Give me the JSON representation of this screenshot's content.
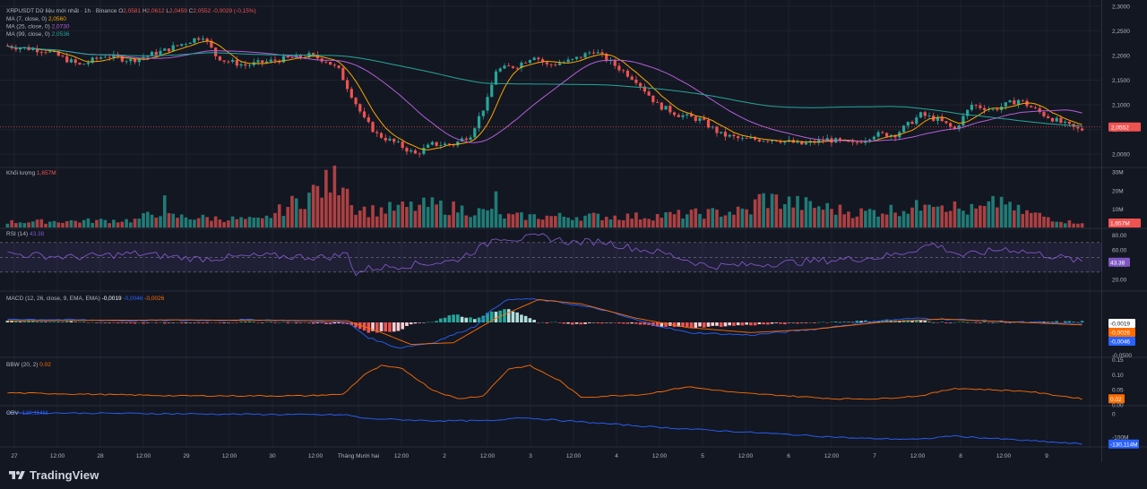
{
  "chart_data": {
    "type": "candlestick",
    "symbol_line": "XRPUSDT Dữ liệu mới nhất · 1h · Binance",
    "ohlc_text": {
      "o_label": "O",
      "o": "2,0581",
      "h_label": "H",
      "h": "2,0612",
      "l_label": "L",
      "l": "2,0459",
      "c_label": "C",
      "c": "2,0552",
      "change": "-0,0029 (-0,15%)"
    },
    "ma_legend": [
      {
        "label": "MA (7, close, 0)",
        "value": "2,0560",
        "color": "#f7a600"
      },
      {
        "label": "MA (25, close, 0)",
        "value": "2,0730",
        "color": "#b45fd7"
      },
      {
        "label": "MA (99, close, 0)",
        "value": "2,0536",
        "color": "#26a69a"
      }
    ],
    "price_axis": {
      "ticks": [
        "2,3000",
        "2,2500",
        "2,2000",
        "2,1500",
        "2,1000",
        "2,0500",
        "2,0000"
      ],
      "range": [
        1.975,
        2.305
      ]
    },
    "last_price": "2,0552",
    "x_axis_ticks": [
      "27",
      "12:00",
      "28",
      "12:00",
      "29",
      "12:00",
      "30",
      "12:00",
      "Tháng Mười hai",
      "12:00",
      "2",
      "12:00",
      "3",
      "12:00",
      "4",
      "12:00",
      "5",
      "12:00",
      "6",
      "12:00",
      "7",
      "12:00",
      "8",
      "12:00",
      "9",
      "12:00"
    ],
    "price_path": [
      [
        0,
        2.22
      ],
      [
        10,
        2.21
      ],
      [
        18,
        2.18
      ],
      [
        24,
        2.2
      ],
      [
        30,
        2.19
      ],
      [
        38,
        2.21
      ],
      [
        44,
        2.23
      ],
      [
        47,
        2.24
      ],
      [
        50,
        2.2
      ],
      [
        52,
        2.19
      ],
      [
        57,
        2.18
      ],
      [
        64,
        2.19
      ],
      [
        72,
        2.2
      ],
      [
        76,
        2.19
      ],
      [
        79,
        2.17
      ],
      [
        85,
        2.07
      ],
      [
        88,
        2.04
      ],
      [
        93,
        2.02
      ],
      [
        97,
        2.0
      ],
      [
        101,
        2.02
      ],
      [
        106,
        2.02
      ],
      [
        110,
        2.04
      ],
      [
        114,
        2.11
      ],
      [
        116,
        2.17
      ],
      [
        121,
        2.18
      ],
      [
        125,
        2.2
      ],
      [
        128,
        2.18
      ],
      [
        134,
        2.19
      ],
      [
        139,
        2.21
      ],
      [
        144,
        2.18
      ],
      [
        149,
        2.15
      ],
      [
        154,
        2.1
      ],
      [
        159,
        2.08
      ],
      [
        164,
        2.07
      ],
      [
        169,
        2.04
      ],
      [
        174,
        2.03
      ],
      [
        182,
        2.03
      ],
      [
        188,
        2.02
      ],
      [
        194,
        2.03
      ],
      [
        200,
        2.02
      ],
      [
        205,
        2.04
      ],
      [
        210,
        2.04
      ],
      [
        216,
        2.08
      ],
      [
        220,
        2.07
      ],
      [
        224,
        2.05
      ],
      [
        228,
        2.1
      ],
      [
        233,
        2.09
      ],
      [
        239,
        2.11
      ],
      [
        245,
        2.08
      ],
      [
        250,
        2.06
      ],
      [
        253,
        2.05
      ]
    ],
    "volume_scale": {
      "ticks": [
        "30M",
        "20M",
        "10M"
      ],
      "last": "1,657M"
    },
    "volume_profile": [
      [
        0,
        3
      ],
      [
        30,
        4
      ],
      [
        36,
        9
      ],
      [
        37,
        13
      ],
      [
        38,
        6
      ],
      [
        60,
        4
      ],
      [
        80,
        29
      ],
      [
        81,
        12
      ],
      [
        85,
        9
      ],
      [
        100,
        12
      ],
      [
        113,
        8
      ],
      [
        115,
        15
      ],
      [
        116,
        6
      ],
      [
        150,
        6
      ],
      [
        175,
        9
      ],
      [
        177,
        16
      ],
      [
        200,
        8
      ],
      [
        215,
        11
      ],
      [
        216,
        18
      ],
      [
        225,
        9
      ],
      [
        230,
        10
      ],
      [
        235,
        16
      ],
      [
        236,
        10
      ],
      [
        250,
        3
      ]
    ],
    "indicators": {
      "volume": {
        "label": "Khối lượng",
        "value": "1,657M"
      },
      "rsi": {
        "label": "RSI (14)",
        "value": "43.38",
        "ticks": [
          "80.00",
          "60.00",
          "40.00",
          "20.00"
        ],
        "last": "43.38",
        "upper": 70,
        "lower": 30,
        "mid": 50
      },
      "macd": {
        "label": "MACD (12, 26, close, 9, EMA, EMA)",
        "v1": "-0,0019",
        "v2": "-0,0046",
        "v3": "-0,0026",
        "axis_labels": {
          "top": "-0,0019",
          "mid": "-0,0026",
          "bottom": "-0,0046",
          "edge": "-0,0500"
        }
      },
      "bbw": {
        "label": "BBW (20, 2)",
        "value": "0.02",
        "ticks": [
          "0.15",
          "0.10",
          "0.05",
          "0.00"
        ],
        "last": "0.02"
      },
      "obv": {
        "label": "OBV",
        "value": "-130,114M",
        "ticks": [
          "0",
          "-100M"
        ],
        "last": "-130,114M"
      }
    },
    "rsi_path": [
      [
        0,
        55
      ],
      [
        15,
        50
      ],
      [
        30,
        55
      ],
      [
        45,
        48
      ],
      [
        60,
        52
      ],
      [
        75,
        50
      ],
      [
        80,
        55
      ],
      [
        82,
        28
      ],
      [
        85,
        35
      ],
      [
        95,
        40
      ],
      [
        105,
        45
      ],
      [
        113,
        68
      ],
      [
        115,
        78
      ],
      [
        120,
        75
      ],
      [
        126,
        78
      ],
      [
        133,
        70
      ],
      [
        140,
        72
      ],
      [
        145,
        65
      ],
      [
        155,
        55
      ],
      [
        165,
        38
      ],
      [
        175,
        40
      ],
      [
        190,
        45
      ],
      [
        205,
        50
      ],
      [
        210,
        55
      ],
      [
        218,
        68
      ],
      [
        225,
        52
      ],
      [
        235,
        62
      ],
      [
        250,
        48
      ],
      [
        253,
        43
      ]
    ],
    "macd_path": [
      [
        0,
        0.004
      ],
      [
        30,
        0.002
      ],
      [
        60,
        0.003
      ],
      [
        80,
        0.0
      ],
      [
        85,
        -0.018
      ],
      [
        92,
        -0.03
      ],
      [
        100,
        -0.024
      ],
      [
        110,
        -0.005
      ],
      [
        113,
        0.01
      ],
      [
        117,
        0.026
      ],
      [
        122,
        0.028
      ],
      [
        130,
        0.024
      ],
      [
        140,
        0.015
      ],
      [
        150,
        0.0
      ],
      [
        160,
        -0.012
      ],
      [
        175,
        -0.015
      ],
      [
        190,
        -0.008
      ],
      [
        205,
        0.002
      ],
      [
        215,
        0.005
      ],
      [
        225,
        0.003
      ],
      [
        240,
        0.0
      ],
      [
        253,
        -0.002
      ]
    ],
    "signal_path": [
      [
        0,
        0.002
      ],
      [
        40,
        0.003
      ],
      [
        80,
        0.002
      ],
      [
        88,
        -0.012
      ],
      [
        95,
        -0.026
      ],
      [
        105,
        -0.024
      ],
      [
        115,
        0.005
      ],
      [
        125,
        0.027
      ],
      [
        135,
        0.022
      ],
      [
        148,
        0.005
      ],
      [
        160,
        -0.006
      ],
      [
        175,
        -0.012
      ],
      [
        190,
        -0.008
      ],
      [
        205,
        0.0
      ],
      [
        220,
        0.004
      ],
      [
        253,
        -0.003
      ]
    ],
    "bbw_path": [
      [
        0,
        0.04
      ],
      [
        40,
        0.03
      ],
      [
        70,
        0.03
      ],
      [
        79,
        0.035
      ],
      [
        84,
        0.1
      ],
      [
        88,
        0.13
      ],
      [
        93,
        0.12
      ],
      [
        100,
        0.05
      ],
      [
        106,
        0.02
      ],
      [
        112,
        0.03
      ],
      [
        118,
        0.12
      ],
      [
        123,
        0.13
      ],
      [
        130,
        0.08
      ],
      [
        135,
        0.025
      ],
      [
        150,
        0.035
      ],
      [
        160,
        0.06
      ],
      [
        172,
        0.04
      ],
      [
        195,
        0.02
      ],
      [
        205,
        0.02
      ],
      [
        215,
        0.03
      ],
      [
        223,
        0.055
      ],
      [
        240,
        0.045
      ],
      [
        253,
        0.02
      ]
    ],
    "obv_path": [
      [
        0,
        5
      ],
      [
        40,
        0
      ],
      [
        80,
        -5
      ],
      [
        84,
        -20
      ],
      [
        100,
        -30
      ],
      [
        115,
        -30
      ],
      [
        120,
        -15
      ],
      [
        135,
        -35
      ],
      [
        155,
        -60
      ],
      [
        175,
        -80
      ],
      [
        200,
        -105
      ],
      [
        215,
        -110
      ],
      [
        222,
        -95
      ],
      [
        240,
        -115
      ],
      [
        253,
        -130
      ]
    ],
    "colors": {
      "up": "#26a69a",
      "down": "#ef5350",
      "ma7": "#f7a600",
      "ma25": "#b45fd7",
      "ma99": "#26a69a",
      "rsi": "#7e57c2",
      "macd": "#2962ff",
      "signal": "#ff6d00",
      "bbw": "#ff6d00",
      "obv": "#2962ff"
    }
  },
  "footer": {
    "brand": "TradingView"
  }
}
